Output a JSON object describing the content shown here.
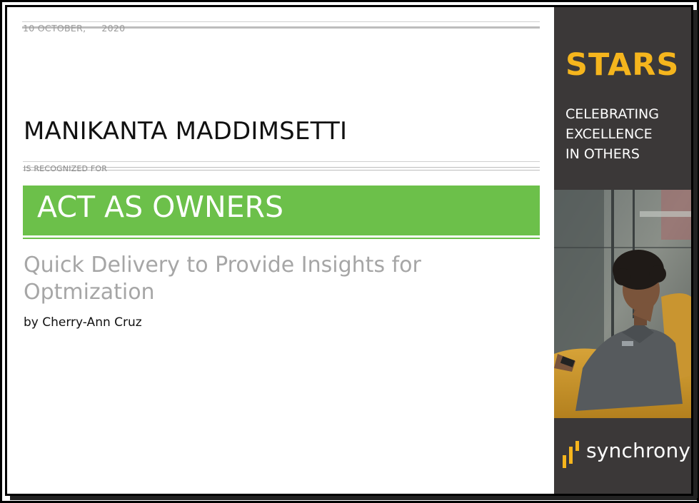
{
  "certificate": {
    "date_day_month": "10 OCTOBER,",
    "date_year": "2020",
    "recipient_name": "MANIKANTA MADDIMSETTI",
    "recognized_label": "IS RECOGNIZED FOR",
    "value": "ACT AS OWNERS",
    "reason": "Quick Delivery to Provide Insights for Optmization",
    "nominator": "by Cherry-Ann Cruz"
  },
  "sidebar": {
    "program": "STARS",
    "tagline_lines": [
      "CELEBRATING",
      "EXCELLENCE",
      "IN OTHERS"
    ],
    "brand": "synchrony"
  },
  "colors": {
    "value_band": "#6cc04a",
    "stars_gold": "#f5b51d",
    "sidebar_bg": "#3b3838"
  },
  "icons": {
    "brand_logo": "synchrony-bars-logo"
  }
}
